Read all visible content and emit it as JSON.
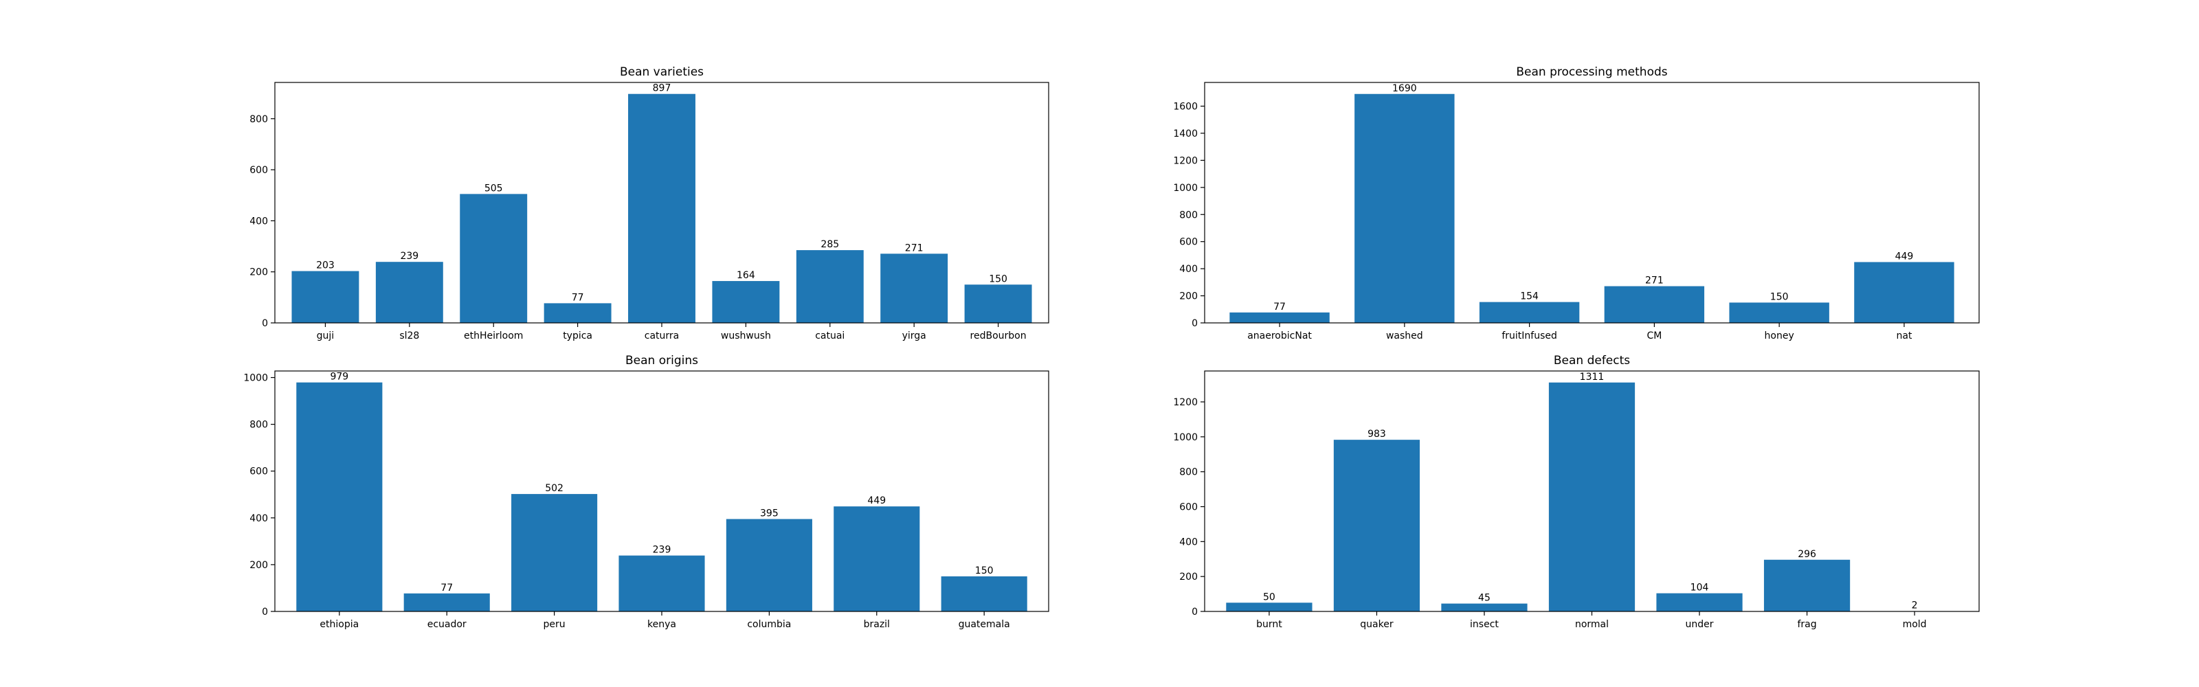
{
  "colors": {
    "bar": "#1f77b4",
    "axis": "#000000",
    "background": "#ffffff"
  },
  "chart_data": [
    {
      "type": "bar",
      "title": "Bean varieties",
      "xlabel": "",
      "ylabel": "",
      "ylim": [
        0,
        942
      ],
      "yticks": [
        0,
        200,
        400,
        600,
        800
      ],
      "grid": false,
      "categories": [
        "guji",
        "sl28",
        "ethHeirloom",
        "typica",
        "caturra",
        "wushwush",
        "catuai",
        "yirga",
        "redBourbon"
      ],
      "values": [
        203,
        239,
        505,
        77,
        897,
        164,
        285,
        271,
        150
      ]
    },
    {
      "type": "bar",
      "title": "Bean processing methods",
      "xlabel": "",
      "ylabel": "",
      "ylim": [
        0,
        1775
      ],
      "yticks": [
        0,
        200,
        400,
        600,
        800,
        1000,
        1200,
        1400,
        1600
      ],
      "grid": false,
      "categories": [
        "anaerobicNat",
        "washed",
        "fruitInfused",
        "CM",
        "honey",
        "nat"
      ],
      "values": [
        77,
        1690,
        154,
        271,
        150,
        449
      ]
    },
    {
      "type": "bar",
      "title": "Bean origins",
      "xlabel": "",
      "ylabel": "",
      "ylim": [
        0,
        1028
      ],
      "yticks": [
        0,
        200,
        400,
        600,
        800,
        1000
      ],
      "grid": false,
      "categories": [
        "ethiopia",
        "ecuador",
        "peru",
        "kenya",
        "columbia",
        "brazil",
        "guatemala"
      ],
      "values": [
        979,
        77,
        502,
        239,
        395,
        449,
        150
      ]
    },
    {
      "type": "bar",
      "title": "Bean defects",
      "xlabel": "",
      "ylabel": "",
      "ylim": [
        0,
        1377
      ],
      "yticks": [
        0,
        200,
        400,
        600,
        800,
        1000,
        1200
      ],
      "grid": false,
      "categories": [
        "burnt",
        "quaker",
        "insect",
        "normal",
        "under",
        "frag",
        "mold"
      ],
      "values": [
        50,
        983,
        45,
        1311,
        104,
        296,
        2
      ]
    }
  ]
}
